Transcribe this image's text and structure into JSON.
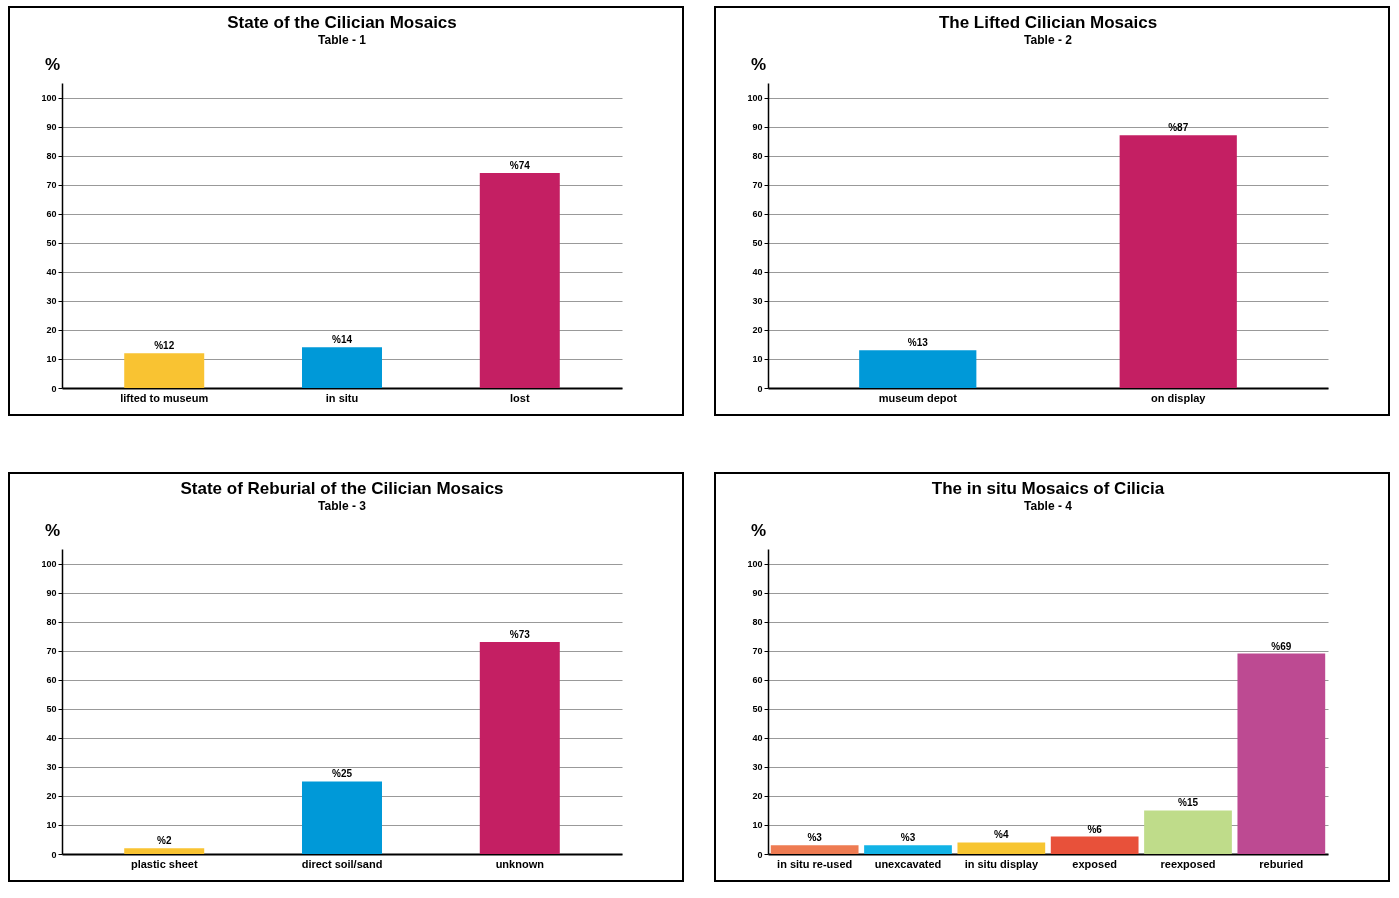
{
  "chart_data": [
    {
      "type": "bar",
      "title": "State of the Cilician Mosaics",
      "subtitle": "Table - 1",
      "ylabel": "%",
      "categories": [
        "lifted to museum",
        "in situ",
        "lost"
      ],
      "values": [
        12,
        14,
        74
      ],
      "colors": [
        "#f9c332",
        "#0099d8",
        "#c41f63"
      ],
      "value_labels": [
        "%12",
        "%14",
        "%74"
      ],
      "ylim": [
        0,
        105
      ],
      "yticks": [
        0,
        10,
        20,
        30,
        40,
        50,
        60,
        70,
        80,
        90,
        100
      ],
      "grid": "y"
    },
    {
      "type": "bar",
      "title": "The Lifted Cilician Mosaics",
      "subtitle": "Table - 2",
      "ylabel": "%",
      "categories": [
        "museum depot",
        "on display"
      ],
      "values": [
        13,
        87
      ],
      "colors": [
        "#0099d8",
        "#c41f63"
      ],
      "value_labels": [
        "%13",
        "%87"
      ],
      "ylim": [
        0,
        105
      ],
      "yticks": [
        0,
        10,
        20,
        30,
        40,
        50,
        60,
        70,
        80,
        90,
        100
      ],
      "grid": "y"
    },
    {
      "type": "bar",
      "title": "State of Reburial of the Cilician Mosaics",
      "subtitle": "Table - 3",
      "ylabel": "%",
      "categories": [
        "plastic sheet",
        "direct soil/sand",
        "unknown"
      ],
      "values": [
        2,
        25,
        73
      ],
      "colors": [
        "#f9c332",
        "#0099d8",
        "#c41f63"
      ],
      "value_labels": [
        "%2",
        "%25",
        "%73"
      ],
      "ylim": [
        0,
        105
      ],
      "yticks": [
        0,
        10,
        20,
        30,
        40,
        50,
        60,
        70,
        80,
        90,
        100
      ],
      "grid": "y"
    },
    {
      "type": "bar",
      "title": "The in situ Mosaics of Cilicia",
      "subtitle": "Table - 4",
      "ylabel": "%",
      "categories": [
        "in situ re-used",
        "unexcavated",
        "in situ display",
        "exposed",
        "reexposed",
        "reburied"
      ],
      "values": [
        3,
        3,
        4,
        6,
        15,
        69
      ],
      "colors": [
        "#ee7b52",
        "#12b3e6",
        "#f7c531",
        "#e8513a",
        "#bfdc8a",
        "#bd4a92"
      ],
      "value_labels": [
        "%3",
        "%3",
        "%4",
        "%6",
        "%15",
        "%69"
      ],
      "ylim": [
        0,
        105
      ],
      "yticks": [
        0,
        10,
        20,
        30,
        40,
        50,
        60,
        70,
        80,
        90,
        100
      ],
      "grid": "y"
    }
  ]
}
